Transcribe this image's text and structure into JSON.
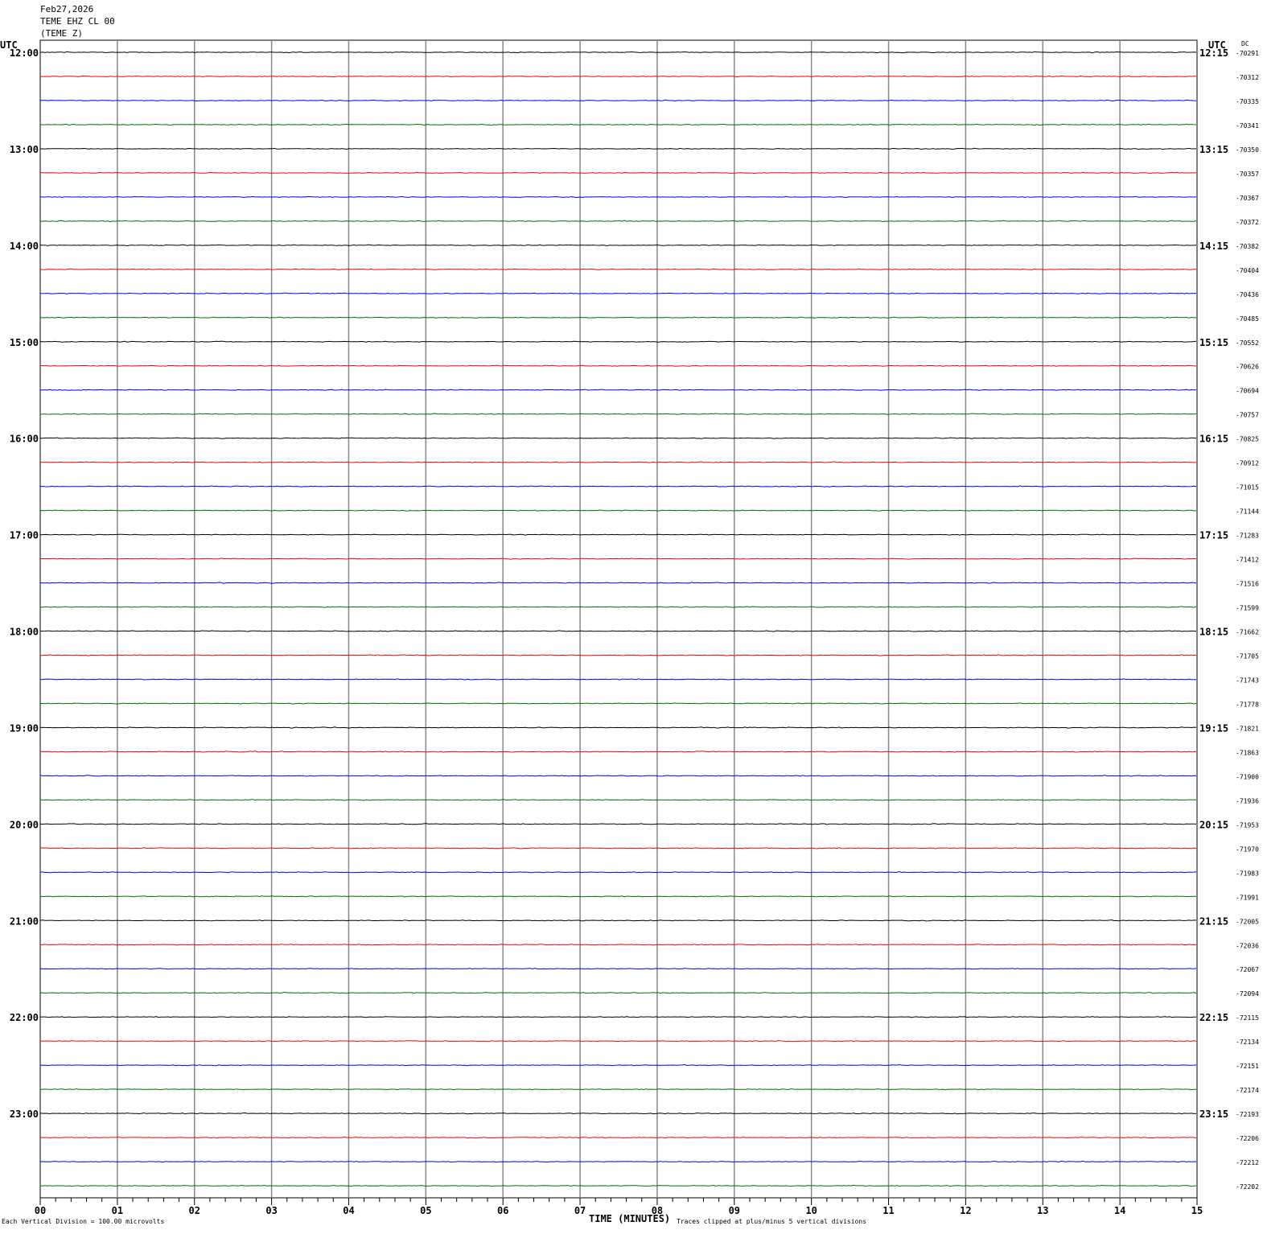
{
  "header": {
    "date": "Feb27,2026",
    "station": "TEME EHZ CL 00",
    "component": "(TEME Z)"
  },
  "chart_data": {
    "type": "line",
    "title": [
      "Feb27,2026",
      "TEME EHZ CL 00",
      "(TEME Z)"
    ],
    "xlabel": "TIME (MINUTES)",
    "xlim": [
      0,
      15
    ],
    "x_ticks": [
      "00",
      "01",
      "02",
      "03",
      "04",
      "05",
      "06",
      "07",
      "08",
      "09",
      "10",
      "11",
      "12",
      "13",
      "14",
      "15"
    ],
    "left_axis_title": "UTC",
    "right_axis_title": "UTC",
    "dc_title": "DC",
    "left_hour_labels": [
      "12:00",
      "13:00",
      "14:00",
      "15:00",
      "16:00",
      "17:00",
      "18:00",
      "19:00",
      "20:00",
      "21:00",
      "22:00",
      "23:00"
    ],
    "right_hour_labels": [
      "12:15",
      "13:15",
      "14:15",
      "15:15",
      "16:15",
      "17:15",
      "18:15",
      "19:15",
      "20:15",
      "21:15",
      "22:15",
      "23:15"
    ],
    "trace_colors": [
      "#000000",
      "#ff0000",
      "#0000ff",
      "#007000"
    ],
    "dc_offsets": [
      "-70291",
      "-70312",
      "-70335",
      "-70341",
      "-70350",
      "-70357",
      "-70367",
      "-70372",
      "-70382",
      "-70404",
      "-70436",
      "-70485",
      "-70552",
      "-70626",
      "-70694",
      "-70757",
      "-70825",
      "-70912",
      "-71015",
      "-71144",
      "-71283",
      "-71412",
      "-71516",
      "-71599",
      "-71662",
      "-71705",
      "-71743",
      "-71778",
      "-71821",
      "-71863",
      "-71900",
      "-71936",
      "-71953",
      "-71970",
      "-71983",
      "-71991",
      "-72005",
      "-72036",
      "-72067",
      "-72094",
      "-72115",
      "-72134",
      "-72151",
      "-72174",
      "-72193",
      "-72206",
      "-72212",
      "-72202"
    ],
    "grid": true
  },
  "footer": {
    "scale_note": "Each Vertical Division =  100.00 microvolts",
    "clip_note": "Traces clipped at plus/minus 5 vertical divisions"
  }
}
